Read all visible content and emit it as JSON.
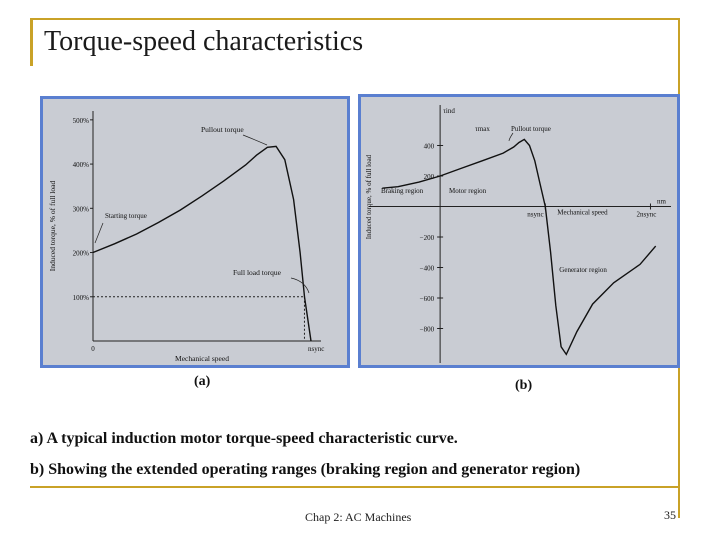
{
  "slide": {
    "title": "Torque-speed characteristics",
    "label_a": "(a)",
    "label_b": "(b)",
    "caption_a": "a) A typical induction motor torque-speed characteristic curve.",
    "caption_b": "b) Showing the extended operating ranges (braking region and generator region)",
    "footer": "Chap 2: AC Machines",
    "page_number": "35",
    "accent_color": "#c9a227",
    "panel_border_color": "#5a7fd0"
  },
  "chart_data": [
    {
      "type": "line",
      "xlabel": "Mechanical speed",
      "ylabel": "Induced torque, % of full load",
      "yticks": [
        "500%",
        "400%",
        "300%",
        "200%",
        "100%"
      ],
      "ytick_values": [
        500,
        400,
        300,
        200,
        100
      ],
      "x_origin_label": "0",
      "x_end_label": "nsync",
      "xlim": [
        0,
        1
      ],
      "ylim": [
        0,
        520
      ],
      "x": [
        0,
        0.1,
        0.2,
        0.3,
        0.4,
        0.5,
        0.6,
        0.7,
        0.75,
        0.8,
        0.84,
        0.88,
        0.92,
        0.95,
        0.97,
        1.0
      ],
      "y": [
        200,
        220,
        242,
        268,
        296,
        328,
        362,
        398,
        420,
        438,
        440,
        410,
        320,
        200,
        100,
        0
      ],
      "full_load_value": 100,
      "annotations": {
        "pullout": "Pullout torque",
        "starting": "Starting torque",
        "full_load": "Full load torque"
      }
    },
    {
      "type": "line",
      "xlabel": "nm",
      "ylabel": "Induced torque, % of full load",
      "y_axis_top_label": "τind",
      "yticks": [
        "400",
        "200",
        "−200",
        "−400",
        "−600",
        "−800"
      ],
      "ytick_values": [
        400,
        200,
        -200,
        -400,
        -600,
        -800
      ],
      "xlim": [
        -0.6,
        2.1
      ],
      "ylim": [
        -1000,
        600
      ],
      "x": [
        -0.55,
        -0.4,
        -0.2,
        0,
        0.2,
        0.4,
        0.6,
        0.7,
        0.75,
        0.8,
        0.85,
        0.9,
        0.95,
        1.0,
        1.05,
        1.1,
        1.15,
        1.2,
        1.3,
        1.45,
        1.65,
        1.9,
        2.05
      ],
      "y": [
        120,
        130,
        160,
        200,
        250,
        300,
        350,
        390,
        420,
        440,
        400,
        300,
        150,
        0,
        -300,
        -650,
        -920,
        -970,
        -820,
        -640,
        -500,
        -380,
        -260
      ],
      "annotations": {
        "tmax": "τmax",
        "pullout": "Pullout torque",
        "braking": "Braking region",
        "motor": "Motor region",
        "nsync": "nsync",
        "mech_speed": "Mechanical speed",
        "two_nsync": "2nsync",
        "generator": "Generator region"
      }
    }
  ]
}
